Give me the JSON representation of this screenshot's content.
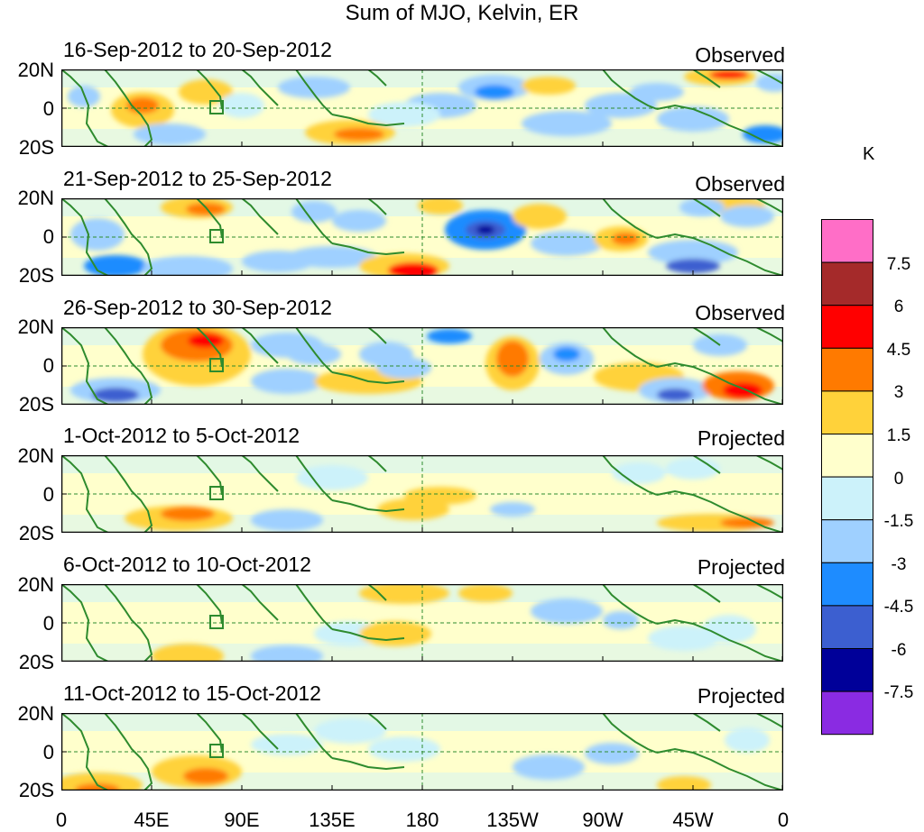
{
  "title": "Sum of MJO, Kelvin, ER",
  "lat_labels": [
    "20N",
    "0",
    "20S"
  ],
  "lon_labels": [
    "0",
    "45E",
    "90E",
    "135E",
    "180",
    "135W",
    "90W",
    "45W",
    "0"
  ],
  "colorbar": {
    "unit": "K",
    "levels": [
      "7.5",
      "6",
      "4.5",
      "3",
      "1.5",
      "0",
      "-1.5",
      "-3",
      "-4.5",
      "-6",
      "-7.5"
    ],
    "colors": [
      "#ff6ec7",
      "#a52a2a",
      "#ff0000",
      "#ff7a00",
      "#ffd23a",
      "#ffffcc",
      "#ccf2fa",
      "#9fd0ff",
      "#1e8cff",
      "#3c5fd0",
      "#000099",
      "#8a2be2"
    ]
  },
  "panels": [
    {
      "date_range": "16-Sep-2012 to 20-Sep-2012",
      "type": "Observed"
    },
    {
      "date_range": "21-Sep-2012 to 25-Sep-2012",
      "type": "Observed"
    },
    {
      "date_range": "26-Sep-2012 to 30-Sep-2012",
      "type": "Observed"
    },
    {
      "date_range": "1-Oct-2012 to 5-Oct-2012",
      "type": "Projected"
    },
    {
      "date_range": "6-Oct-2012 to 10-Oct-2012",
      "type": "Projected"
    },
    {
      "date_range": "11-Oct-2012 to 15-Oct-2012",
      "type": "Projected"
    }
  ]
}
